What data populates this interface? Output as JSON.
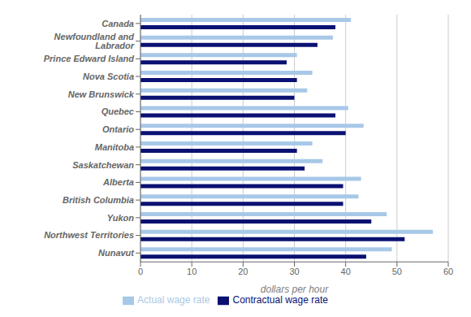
{
  "chart_data": {
    "type": "bar",
    "orientation": "horizontal",
    "categories": [
      "Canada",
      "Newfoundland and Labrador",
      "Prince Edward Island",
      "Nova Scotia",
      "New Brunswick",
      "Quebec",
      "Ontario",
      "Manitoba",
      "Saskatchewan",
      "Alberta",
      "British Columbia",
      "Yukon",
      "Northwest Territories",
      "Nunavut"
    ],
    "series": [
      {
        "name": "Actual wage rate",
        "color": "#a8c8e8",
        "values": [
          41.0,
          37.5,
          30.5,
          33.5,
          32.5,
          40.5,
          43.5,
          33.5,
          35.5,
          43.0,
          42.5,
          48.0,
          57.0,
          49.0
        ]
      },
      {
        "name": "Contractual wage rate",
        "color": "#0a1172",
        "values": [
          38.0,
          34.5,
          28.5,
          30.5,
          30.0,
          38.0,
          40.0,
          30.5,
          32.0,
          39.5,
          39.5,
          45.0,
          51.5,
          44.0
        ]
      }
    ],
    "xlabel": "dollars per hour",
    "xlim": [
      0,
      60
    ],
    "xticks": [
      0,
      10,
      20,
      30,
      40,
      50,
      60
    ],
    "grid": true,
    "legend": "bottom"
  }
}
